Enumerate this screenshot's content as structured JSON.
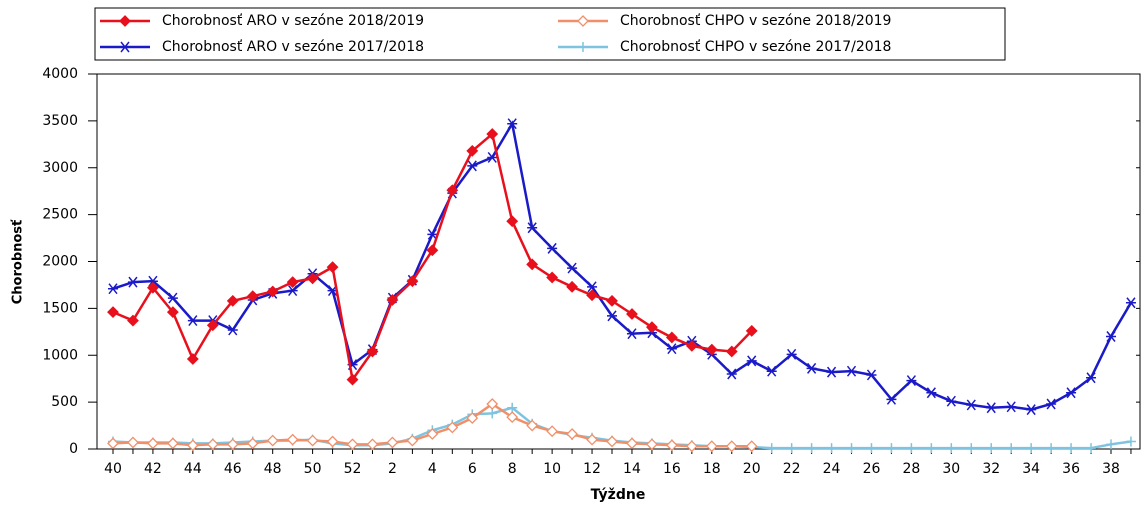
{
  "chart_data": {
    "type": "line",
    "x_label": "Týždne",
    "y_label": "Chorobnosť",
    "categories": [
      "40",
      null,
      "42",
      null,
      "44",
      null,
      "46",
      null,
      "48",
      null,
      "50",
      null,
      "52",
      null,
      "2",
      null,
      "4",
      null,
      "6",
      null,
      "8",
      null,
      "10",
      null,
      "12",
      null,
      "14",
      null,
      "16",
      null,
      "18",
      null,
      "20",
      null,
      "22",
      null,
      "24",
      null,
      "26",
      null,
      "28",
      null,
      "30",
      null,
      "32",
      null,
      "34",
      null,
      "36",
      null,
      "38",
      null
    ],
    "ylim": [
      0,
      4000
    ],
    "yticks": [
      0,
      500,
      1000,
      1500,
      2000,
      2500,
      3000,
      3500,
      4000
    ],
    "series": [
      {
        "name": "Chorobnosť ARO v sezóne 2018/2019",
        "color": "#e8101c",
        "marker": "diamond",
        "values": [
          1460,
          1370,
          1720,
          1460,
          960,
          1320,
          1580,
          1630,
          1680,
          1780,
          1820,
          1940,
          740,
          1040,
          1590,
          1790,
          2120,
          2760,
          3180,
          3360,
          2430,
          1970,
          1830,
          1730,
          1640,
          1580,
          1440,
          1300,
          1190,
          1100,
          1060,
          1040,
          1260,
          null,
          null,
          null,
          null,
          null,
          null,
          null,
          null,
          null,
          null,
          null,
          null,
          null,
          null,
          null,
          null,
          null,
          null,
          null
        ]
      },
      {
        "name": "Chorobnosť CHPO v sezóne 2018/2019",
        "color": "#f0906a",
        "marker": "diamond-open",
        "values": [
          60,
          70,
          60,
          60,
          40,
          50,
          50,
          60,
          90,
          100,
          90,
          80,
          50,
          50,
          70,
          90,
          160,
          230,
          330,
          480,
          340,
          250,
          190,
          160,
          100,
          80,
          60,
          50,
          40,
          30,
          30,
          30,
          30,
          null,
          null,
          null,
          null,
          null,
          null,
          null,
          null,
          null,
          null,
          null,
          null,
          null,
          null,
          null,
          null,
          null,
          null,
          null
        ]
      },
      {
        "name": "Chorobnosť ARO v sezóne 2017/2018",
        "color": "#1a1ac8",
        "marker": "star",
        "values": [
          1710,
          1780,
          1790,
          1610,
          1370,
          1370,
          1270,
          1590,
          1660,
          1690,
          1870,
          1690,
          900,
          1060,
          1610,
          1800,
          2290,
          2730,
          3020,
          3110,
          3470,
          2360,
          2140,
          1930,
          1730,
          1420,
          1230,
          1240,
          1070,
          1150,
          1010,
          800,
          940,
          830,
          1010,
          860,
          820,
          830,
          790,
          530,
          730,
          600,
          510,
          470,
          440,
          450,
          420,
          480,
          600,
          760,
          1200,
          1560
        ]
      },
      {
        "name": "Chorobnosť CHPO v sezóne 2017/2018",
        "color": "#7ec4e0",
        "marker": "plus",
        "values": [
          80,
          70,
          70,
          70,
          60,
          60,
          70,
          80,
          90,
          90,
          100,
          60,
          40,
          40,
          60,
          110,
          200,
          260,
          370,
          380,
          440,
          270,
          190,
          150,
          120,
          90,
          70,
          60,
          50,
          40,
          30,
          30,
          20,
          10,
          10,
          10,
          10,
          10,
          10,
          10,
          10,
          10,
          10,
          10,
          10,
          10,
          10,
          10,
          10,
          10,
          50,
          80
        ]
      }
    ]
  }
}
